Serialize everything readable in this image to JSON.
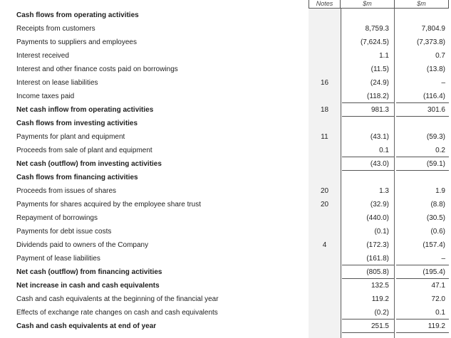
{
  "columns": {
    "notes": "Notes",
    "current": "$m",
    "prior": "$m"
  },
  "rows": [
    {
      "label": "Cash flows from operating activities",
      "bold": true,
      "note": "",
      "current": "",
      "prior": ""
    },
    {
      "label": "Receipts from customers",
      "bold": false,
      "note": "",
      "current": "8,759.3",
      "prior": "7,804.9"
    },
    {
      "label": "Payments to suppliers and employees",
      "bold": false,
      "note": "",
      "current": "(7,624.5)",
      "prior": "(7,373.8)"
    },
    {
      "label": "Interest received",
      "bold": false,
      "note": "",
      "current": "1.1",
      "prior": "0.7"
    },
    {
      "label": "Interest and other finance costs paid on borrowings",
      "bold": false,
      "note": "",
      "current": "(11.5)",
      "prior": "(13.8)"
    },
    {
      "label": "Interest on lease liabilities",
      "bold": false,
      "note": "16",
      "current": "(24.9)",
      "prior": "–"
    },
    {
      "label": "Income taxes paid",
      "bold": false,
      "note": "",
      "current": "(118.2)",
      "prior": "(116.4)"
    },
    {
      "label": "Net cash inflow from operating activities",
      "bold": true,
      "note": "18",
      "current": "981.3",
      "prior": "301.6"
    },
    {
      "label": "Cash flows from investing activities",
      "bold": true,
      "note": "",
      "current": "",
      "prior": ""
    },
    {
      "label": "Payments for plant and equipment",
      "bold": false,
      "note": "11",
      "current": "(43.1)",
      "prior": "(59.3)"
    },
    {
      "label": "Proceeds from sale of plant and equipment",
      "bold": false,
      "note": "",
      "current": "0.1",
      "prior": "0.2"
    },
    {
      "label": "Net cash (outflow) from investing activities",
      "bold": true,
      "note": "",
      "current": "(43.0)",
      "prior": "(59.1)"
    },
    {
      "label": "Cash flows from financing activities",
      "bold": true,
      "note": "",
      "current": "",
      "prior": ""
    },
    {
      "label": "Proceeds from issues of shares",
      "bold": false,
      "note": "20",
      "current": "1.3",
      "prior": "1.9"
    },
    {
      "label": "Payments for shares acquired by the employee share trust",
      "bold": false,
      "note": "20",
      "current": "(32.9)",
      "prior": "(8.8)"
    },
    {
      "label": "Repayment of borrowings",
      "bold": false,
      "note": "",
      "current": "(440.0)",
      "prior": "(30.5)"
    },
    {
      "label": "Payments for debt issue costs",
      "bold": false,
      "note": "",
      "current": "(0.1)",
      "prior": "(0.6)"
    },
    {
      "label": "Dividends paid to owners of the Company",
      "bold": false,
      "note": "4",
      "current": "(172.3)",
      "prior": "(157.4)"
    },
    {
      "label": "Payment of lease liabilities",
      "bold": false,
      "note": "",
      "current": "(161.8)",
      "prior": "–"
    },
    {
      "label": "Net cash (outflow) from financing activities",
      "bold": true,
      "note": "",
      "current": "(805.8)",
      "prior": "(195.4)"
    },
    {
      "label": "Net increase in cash and cash equivalents",
      "bold": true,
      "note": "",
      "current": "132.5",
      "prior": "47.1"
    },
    {
      "label": "Cash and cash equivalents at the beginning of the financial year",
      "bold": false,
      "note": "",
      "current": "119.2",
      "prior": "72.0"
    },
    {
      "label": "Effects of exchange rate changes on cash and cash equivalents",
      "bold": false,
      "note": "",
      "current": "(0.2)",
      "prior": "0.1"
    },
    {
      "label": "Cash and cash equivalents at end of year",
      "bold": true,
      "note": "",
      "current": "251.5",
      "prior": "119.2"
    }
  ]
}
